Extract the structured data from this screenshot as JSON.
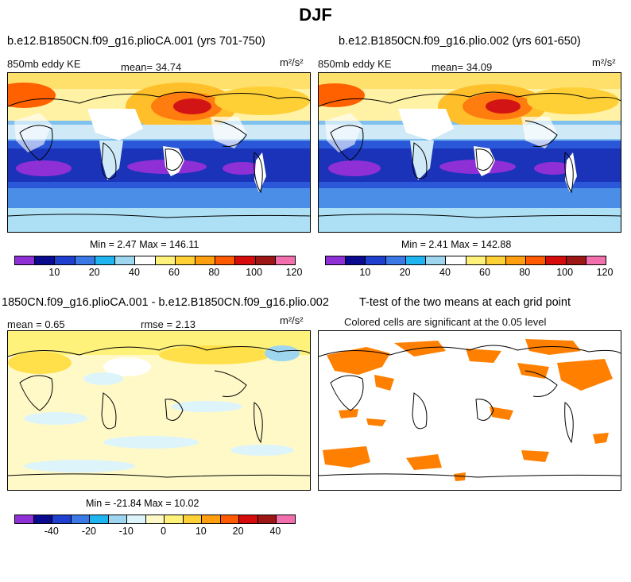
{
  "title": "DJF",
  "panel1": {
    "title": "b.e12.B1850CN.f09_g16.plioCA.001 (yrs 701-750)",
    "variable": "850mb eddy KE",
    "mean_text": "mean=  34.74",
    "units_text": "m²/s²",
    "minmax_text": "Min =   2.47 Max = 146.11"
  },
  "panel2": {
    "title": "b.e12.B1850CN.f09_g16.plio.002 (yrs 601-650)",
    "variable": "850mb eddy KE",
    "mean_text": "mean=  34.09",
    "units_text": "m²/s²",
    "minmax_text": "Min =   2.41 Max = 142.88"
  },
  "panel3": {
    "title": "1850CN.f09_g16.plioCA.001 - b.e12.B1850CN.f09_g16.plio.002",
    "mean_text": "mean =   0.65",
    "rmse_text": "rmse =   2.13",
    "units_text": "m²/s²",
    "minmax_text": "Min = -21.84 Max =  10.02"
  },
  "panel4": {
    "title": "T-test of the two means at each grid point",
    "subtitle": "Colored cells are significant at the 0.05 level",
    "sig_color": "#ff7f00"
  },
  "colorbar_top": {
    "colors": [
      "#8f2fd6",
      "#0a0a8f",
      "#1f3fcf",
      "#3a78e6",
      "#1fb4ef",
      "#9fd6ef",
      "#ffffff",
      "#fff27a",
      "#ffcf36",
      "#ff9f0f",
      "#ff5a00",
      "#d60c0c",
      "#9c1616",
      "#f26fae"
    ],
    "ticks": [
      "10",
      "20",
      "40",
      "60",
      "80",
      "100",
      "120"
    ]
  },
  "colorbar_diff": {
    "colors": [
      "#8f2fd6",
      "#0a0a8f",
      "#1f3fcf",
      "#3a78e6",
      "#1fb4ef",
      "#9fd6ef",
      "#ddf5fa",
      "#fff9c8",
      "#fff27a",
      "#ffcf36",
      "#ff9f0f",
      "#ff5a00",
      "#d60c0c",
      "#9c1616",
      "#f26fae"
    ],
    "ticks": [
      "-40",
      "-20",
      "-10",
      "0",
      "10",
      "20",
      "40"
    ]
  }
}
